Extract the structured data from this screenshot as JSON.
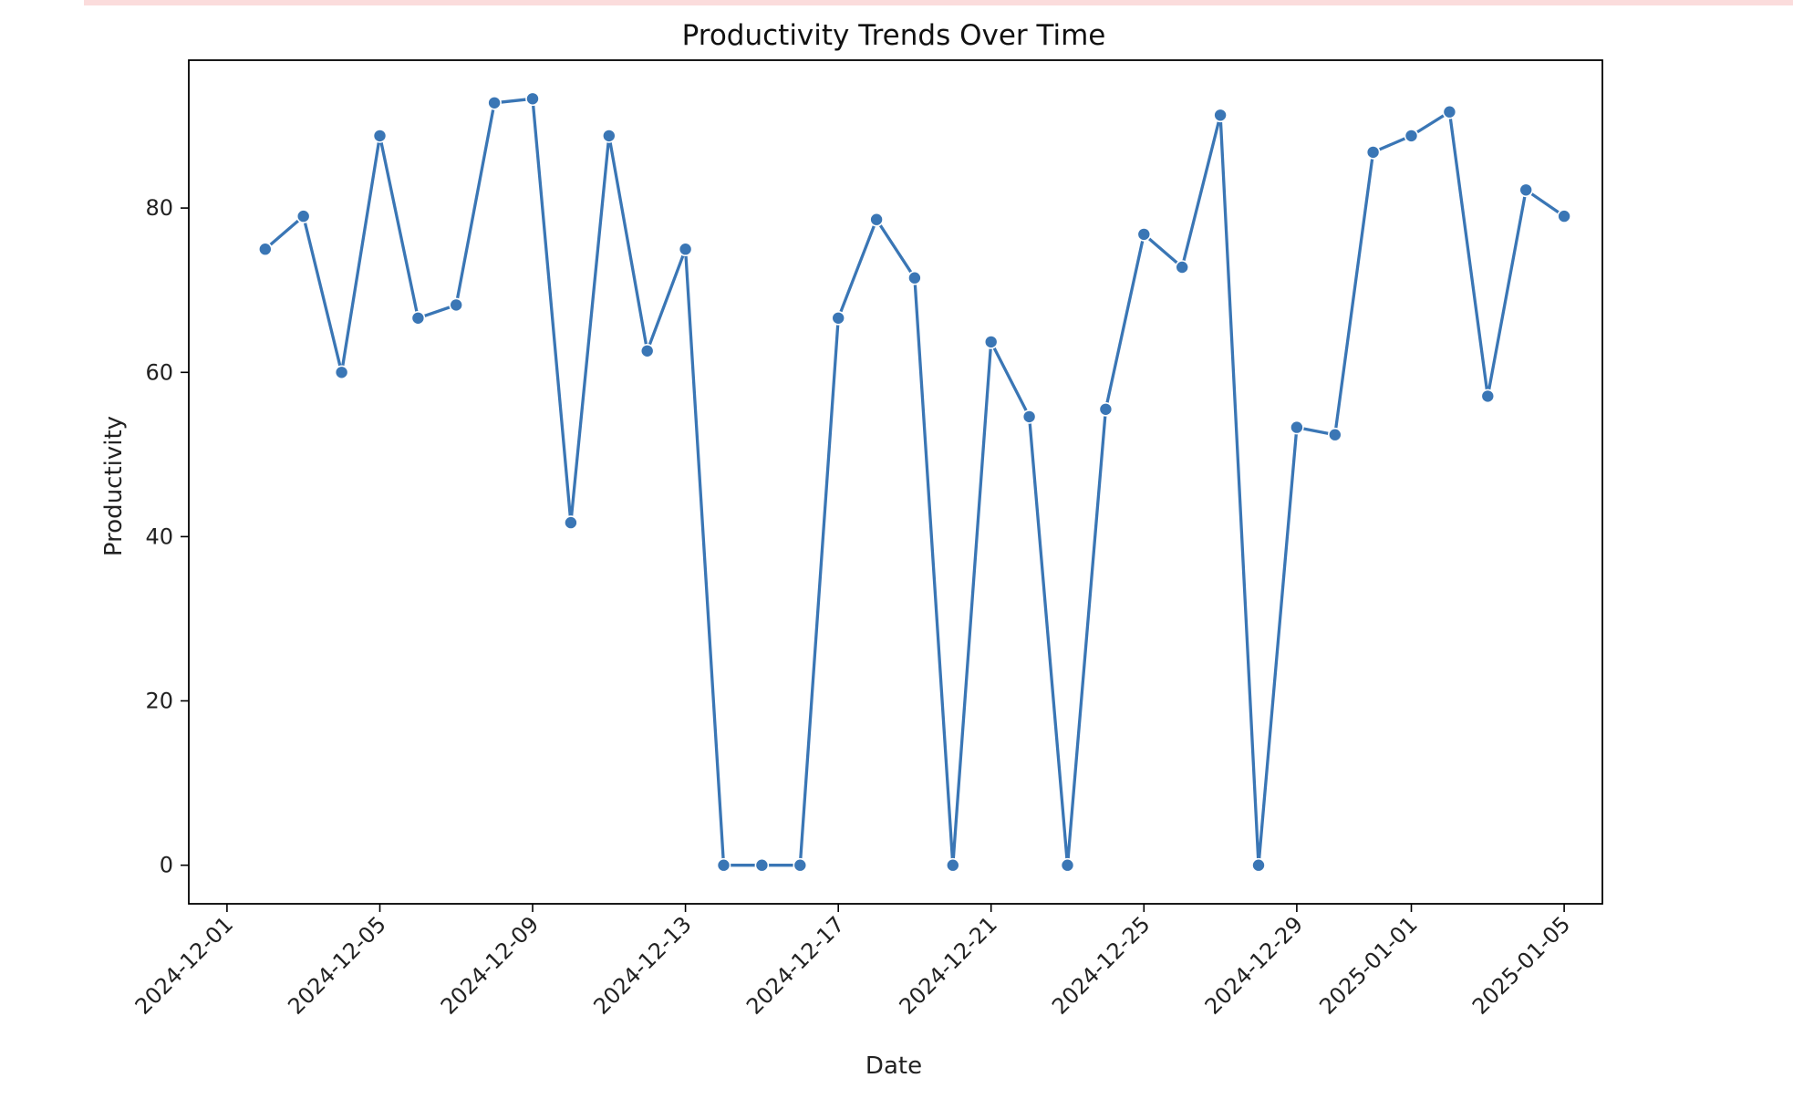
{
  "chart_data": {
    "type": "line",
    "title": "Productivity Trends Over Time",
    "xlabel": "Date",
    "ylabel": "Productivity",
    "x": [
      "2024-12-02",
      "2024-12-03",
      "2024-12-04",
      "2024-12-05",
      "2024-12-06",
      "2024-12-07",
      "2024-12-08",
      "2024-12-09",
      "2024-12-10",
      "2024-12-11",
      "2024-12-12",
      "2024-12-13",
      "2024-12-14",
      "2024-12-15",
      "2024-12-16",
      "2024-12-17",
      "2024-12-18",
      "2024-12-19",
      "2024-12-20",
      "2024-12-21",
      "2024-12-22",
      "2024-12-23",
      "2024-12-24",
      "2024-12-25",
      "2024-12-26",
      "2024-12-27",
      "2024-12-28",
      "2024-12-29",
      "2024-12-30",
      "2024-12-31",
      "2025-01-01",
      "2025-01-02",
      "2025-01-03",
      "2025-01-04",
      "2025-01-05"
    ],
    "series": [
      {
        "values": [
          75.0,
          79.0,
          60.0,
          88.8,
          66.6,
          68.2,
          92.8,
          93.3,
          41.7,
          88.8,
          62.6,
          75.0,
          0,
          0,
          0,
          66.6,
          78.6,
          71.5,
          0,
          63.7,
          54.6,
          0,
          55.5,
          76.8,
          72.8,
          91.3,
          0,
          53.3,
          52.4,
          86.8,
          88.8,
          91.7,
          57.1,
          82.2,
          79.0
        ],
        "color": "#3a76b5"
      }
    ],
    "xticks": [
      "2024-12-01",
      "2024-12-05",
      "2024-12-09",
      "2024-12-13",
      "2024-12-17",
      "2024-12-21",
      "2024-12-25",
      "2024-12-29",
      "2025-01-01",
      "2025-01-05"
    ],
    "yticks": [
      0,
      20,
      40,
      60,
      80
    ],
    "xlim": [
      "2024-11-30",
      "2025-01-06"
    ],
    "ylim": [
      -4.7,
      98
    ],
    "grid": false,
    "marker": "circle"
  }
}
